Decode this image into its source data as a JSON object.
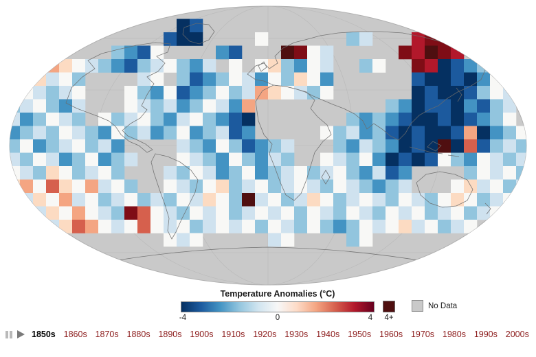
{
  "map": {
    "no_data_color": "#c9c9c9",
    "coastline_color": "#6b6b6b",
    "graticule_color": "#b3b3b3",
    "background": "#ffffff"
  },
  "legend": {
    "title": "Temperature Anomalies (°C)",
    "scale_min_label": "-4",
    "scale_mid_label": "0",
    "scale_max_label": "4",
    "over_label": "4+",
    "no_data_label": "No Data",
    "over_color": "#4f0f10",
    "no_data_color": "#c9c9c9",
    "gradient_stops": [
      "#053061",
      "#1c5a9e",
      "#4393c3",
      "#92c5de",
      "#d1e5f0",
      "#f7f7f7",
      "#fddbc7",
      "#f4a582",
      "#d6604d",
      "#b2182b",
      "#67001f"
    ]
  },
  "timeline": {
    "decades": [
      "1850s",
      "1860s",
      "1870s",
      "1880s",
      "1890s",
      "1900s",
      "1910s",
      "1920s",
      "1930s",
      "1940s",
      "1950s",
      "1960s",
      "1970s",
      "1980s",
      "1990s",
      "2000s"
    ],
    "active_decade": "1850s",
    "decade_color": "#8b1a1a",
    "active_color": "#000000"
  },
  "chart_data": {
    "type": "heatmap",
    "title": "Temperature Anomalies (°C)",
    "frame": "1850s",
    "projection": "mollweide-style world map",
    "colorbar": {
      "min": -4,
      "mid": 0,
      "max": 4,
      "over": "4+",
      "units": "°C",
      "no_data": "No Data"
    },
    "grid": {
      "cols": 40,
      "rows_count": 21,
      "note": "approximate decadal anomaly mosaic read from pixels; '.' = no data (gray)",
      "palette": {
        "a": {
          "anomaly_c": -4.0,
          "color": "#053061"
        },
        "b": {
          "anomaly_c": -3.0,
          "color": "#1c5a9e"
        },
        "c": {
          "anomaly_c": -2.0,
          "color": "#4393c3"
        },
        "d": {
          "anomaly_c": -1.0,
          "color": "#92c5de"
        },
        "e": {
          "anomaly_c": -0.5,
          "color": "#cfe2ef"
        },
        "0": {
          "anomaly_c": 0.0,
          "color": "#f8f8f6"
        },
        "g": {
          "anomaly_c": 0.5,
          "color": "#fcdbc2"
        },
        "h": {
          "anomaly_c": 1.0,
          "color": "#f4a582"
        },
        "i": {
          "anomaly_c": 2.0,
          "color": "#d6604d"
        },
        "j": {
          "anomaly_c": 3.0,
          "color": "#b2182b"
        },
        "k": {
          "anomaly_c": 4.0,
          "color": "#7f0d16"
        },
        "m": {
          "anomaly_c": 5.0,
          "color": "#4f0f10"
        }
      },
      "rows": [
        "........................................",
        ".............ab.........................",
        "............baa....0......de...jkkj.....",
        "........dcb0....cb...mk0e.....kjmkj.d...",
        ".g0hg0edcbde0dce.0.0gdc0e..d0..kjabcdg..",
        "0dge0d....e0.dbcd0ec0dg0c......baabac0..",
        "g0ede0...0dc0bcd0dehg0ed0......abaabd0e.",
        "de0dce...0edecd0ech..........dcabbacbde.",
        "ecd0ed.0de0dce0dcba.......dcdcbaababcd0.",
        "cded0edc0decd0cdebc.....0decdbabaabhacd0",
        "d0cde0dec....edc0dbcde...dcedcabamaibded",
        "ed0ecd0cde...0edc0dced..0ed0cabab0dc0ede",
        "0edg0de0d...ed0ecd0cde0de0dcebc....d0e0d",
        "gh0ig0he0d..0ed0gde0de0ed0edcde...0ge0de",
        "0eg0he0de0ded0eg0dme0deg0de0ed0ed0g0de0.",
        ".0eg0h0edki0ed0e0de0e0d0ed0ed0e0de0de0..",
        "..0egih0e0i0e0de0e0d0ed0dcd0e0ge0de0....",
        "............0e0.....e0....d0............",
        "........................................",
        "........................................",
        "........................................"
      ]
    }
  }
}
